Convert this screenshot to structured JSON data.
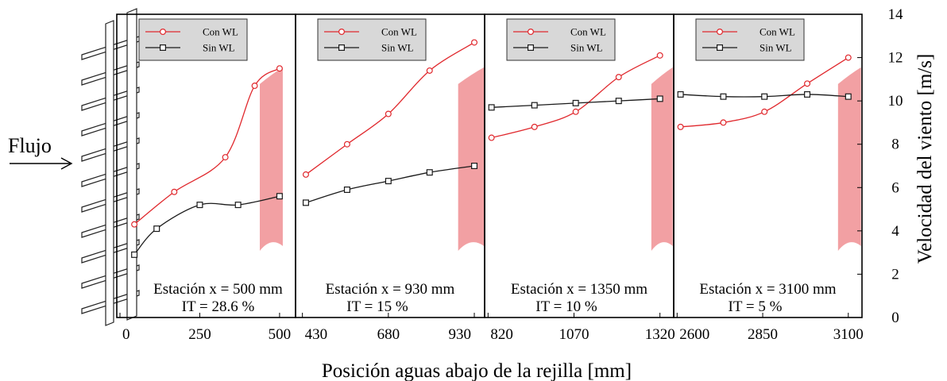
{
  "figure": {
    "xlabel": "Posición aguas abajo de la rejilla [mm]",
    "ylabel": "Velocidad del viento [m/s]",
    "flow_label": "Flujo",
    "legend": [
      {
        "label": "Con WL",
        "color": "#e0282d",
        "marker": "circle"
      },
      {
        "label": "Sin WL",
        "color": "#1a1a1a",
        "marker": "square"
      }
    ],
    "band_color": "#f2a0a3",
    "y_axis": {
      "min": 0,
      "max": 14,
      "ticks": [
        0,
        2,
        4,
        6,
        8,
        10,
        12,
        14
      ]
    }
  },
  "chart_data": [
    {
      "type": "line",
      "station_label": "Estación x = 500 mm",
      "it_label": "IT = 28.6 %",
      "xlim": [
        -10,
        550
      ],
      "ylim": [
        0,
        14
      ],
      "xticks": [
        0,
        250,
        500
      ],
      "band": {
        "x_start": 438,
        "x_end": 510
      },
      "series": [
        {
          "name": "Con WL",
          "x": [
            45,
            170,
            330,
            422,
            500
          ],
          "values": [
            4.3,
            5.8,
            7.4,
            10.7,
            11.5
          ]
        },
        {
          "name": "Sin WL",
          "x": [
            45,
            115,
            250,
            370,
            500
          ],
          "values": [
            2.9,
            4.1,
            5.2,
            5.2,
            5.6
          ]
        }
      ]
    },
    {
      "type": "line",
      "station_label": "Estación x = 930 mm",
      "it_label": "IT = 15 %",
      "xlim": [
        410,
        960
      ],
      "ylim": [
        0,
        14
      ],
      "xticks": [
        430,
        680,
        930
      ],
      "band": {
        "x_start": 883,
        "x_end": 958
      },
      "series": [
        {
          "name": "Con WL",
          "x": [
            440,
            560,
            680,
            800,
            930
          ],
          "values": [
            6.6,
            8.0,
            9.4,
            11.4,
            12.7
          ]
        },
        {
          "name": "Sin WL",
          "x": [
            440,
            560,
            680,
            800,
            930
          ],
          "values": [
            5.3,
            5.9,
            6.3,
            6.7,
            7.0
          ]
        }
      ]
    },
    {
      "type": "line",
      "station_label": "Estación x = 1350 mm",
      "it_label": "IT = 10 %",
      "xlim": [
        810,
        1360
      ],
      "ylim": [
        0,
        14
      ],
      "xticks": [
        820,
        1070,
        1320
      ],
      "band": {
        "x_start": 1295,
        "x_end": 1357
      },
      "series": [
        {
          "name": "Con WL",
          "x": [
            830,
            955,
            1075,
            1200,
            1320
          ],
          "values": [
            8.3,
            8.8,
            9.5,
            11.1,
            12.1
          ]
        },
        {
          "name": "Sin WL",
          "x": [
            830,
            955,
            1075,
            1200,
            1320
          ],
          "values": [
            9.7,
            9.8,
            9.9,
            10.0,
            10.1
          ]
        }
      ]
    },
    {
      "type": "line",
      "station_label": "Estación x = 3100 mm",
      "it_label": "IT = 5 %",
      "xlim": [
        2590,
        3140
      ],
      "ylim": [
        0,
        14
      ],
      "xticks": [
        2600,
        2850,
        3100
      ],
      "band": {
        "x_start": 3070,
        "x_end": 3137
      },
      "series": [
        {
          "name": "Con WL",
          "x": [
            2610,
            2735,
            2855,
            2980,
            3100
          ],
          "values": [
            8.8,
            9.0,
            9.5,
            10.8,
            12.0
          ]
        },
        {
          "name": "Sin WL",
          "x": [
            2610,
            2735,
            2855,
            2980,
            3100
          ],
          "values": [
            10.3,
            10.2,
            10.2,
            10.3,
            10.2
          ]
        }
      ]
    }
  ]
}
